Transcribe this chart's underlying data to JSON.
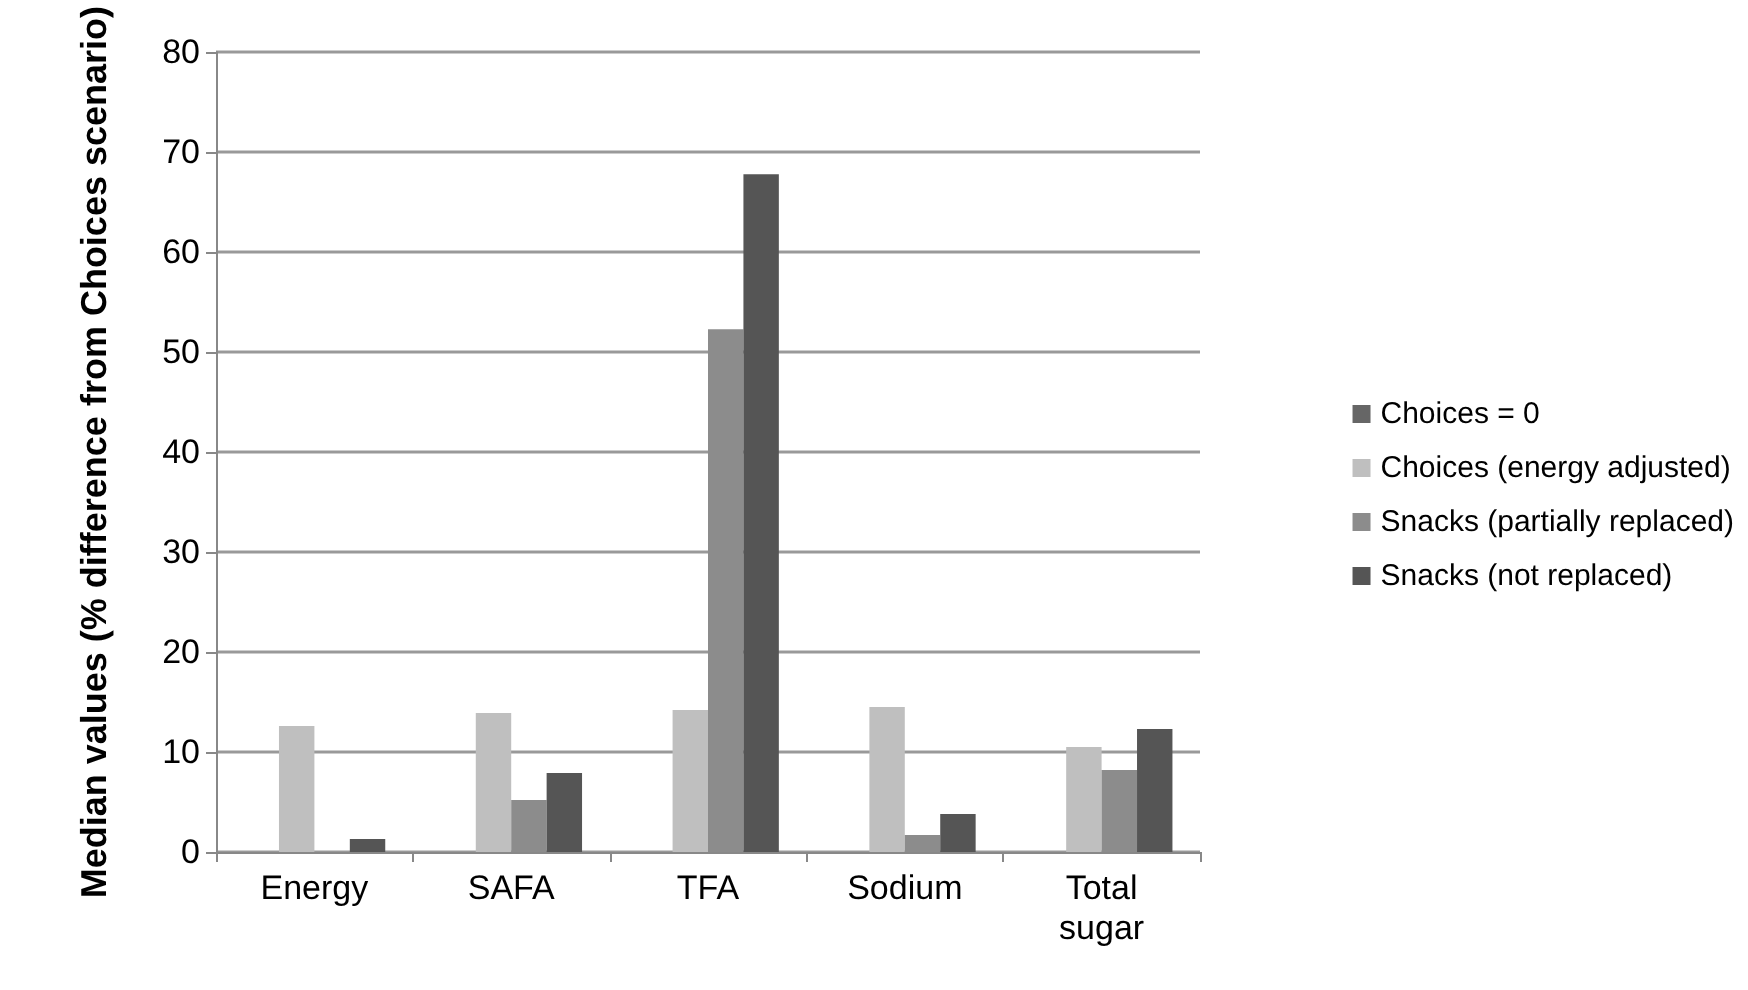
{
  "chart_data": {
    "type": "bar",
    "ylabel": "Median values (% difference from Choices scenario)",
    "categories": [
      "Energy",
      "SAFA",
      "TFA",
      "Sodium",
      "Total sugar"
    ],
    "series": [
      {
        "name": "Choices = 0",
        "color": "#666666",
        "values": [
          0,
          0,
          0,
          0,
          0
        ]
      },
      {
        "name": "Choices (energy adjusted)",
        "color": "#bfbfbf",
        "values": [
          12.6,
          13.9,
          14.2,
          14.5,
          10.5
        ]
      },
      {
        "name": "Snacks (partially replaced)",
        "color": "#8c8c8c",
        "values": [
          0,
          5.2,
          52.3,
          1.7,
          8.2
        ]
      },
      {
        "name": "Snacks (not replaced)",
        "color": "#555555",
        "values": [
          1.3,
          7.9,
          67.8,
          3.8,
          12.3
        ]
      }
    ],
    "ylim": [
      0,
      80
    ],
    "yticks": [
      0,
      10,
      20,
      30,
      40,
      50,
      60,
      70,
      80
    ],
    "grid": "y",
    "legend": "right"
  }
}
